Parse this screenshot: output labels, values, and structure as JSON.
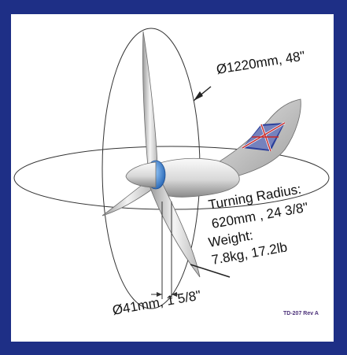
{
  "diagram": {
    "rotor_diameter": "Ø1220mm, 48\"",
    "turning_radius_label": "Turning Radius:",
    "turning_radius_value": "620mm , 24 3/8\"",
    "weight_label": "Weight:",
    "weight_value": "7.8kg, 17.2lb",
    "mount_diameter": "Ø41mm, 1 5/8\"",
    "doc_code": "TD-207 Rev A"
  },
  "colors": {
    "frame": "#1e2f86",
    "body_light": "#f2f2f2",
    "body_shade": "#8e8e8e",
    "hub": "#2f7fd0",
    "flag_red": "#c62828",
    "flag_blue": "#2b3f9a",
    "doc_code": "#4a2f78"
  },
  "icons": [
    "wind-turbine-illustration",
    "union-flag-emblem"
  ]
}
